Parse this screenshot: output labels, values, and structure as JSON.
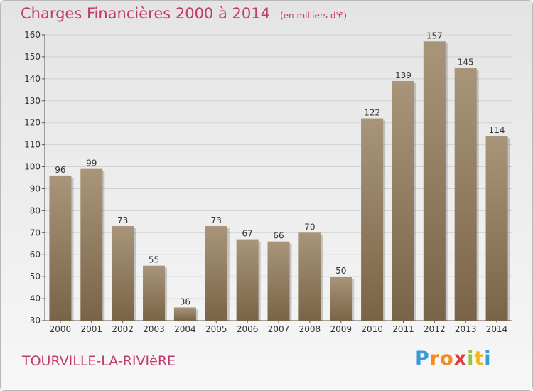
{
  "title": "Charges Financières 2000 à 2014",
  "unit_note": "(en milliers d'€)",
  "city": "TOURVILLE-LA-RIVIèRE",
  "logo": {
    "letters": [
      "P",
      "r",
      "o",
      "x",
      "i",
      "t",
      "i"
    ],
    "colors": [
      "#3a9ad9",
      "#f28c1e",
      "#f28c1e",
      "#e23b3b",
      "#8dc63f",
      "#f2b51e",
      "#3a9ad9"
    ]
  },
  "colors": {
    "title": "#c03a6e",
    "bar_top": "#a8957a",
    "bar_bottom": "#7a6447",
    "grid": "#d2d2d2"
  },
  "chart_data": {
    "type": "bar",
    "title": "Charges Financières 2000 à 2014",
    "categories": [
      "2000",
      "2001",
      "2002",
      "2003",
      "2004",
      "2005",
      "2006",
      "2007",
      "2008",
      "2009",
      "2010",
      "2011",
      "2012",
      "2013",
      "2014"
    ],
    "values": [
      96,
      99,
      73,
      55,
      36,
      73,
      67,
      66,
      70,
      50,
      122,
      139,
      157,
      145,
      114
    ],
    "xlabel": "",
    "ylabel": "",
    "ylim": [
      30,
      160
    ],
    "yticks": [
      30,
      40,
      50,
      60,
      70,
      80,
      90,
      100,
      110,
      120,
      130,
      140,
      150,
      160
    ],
    "grid": true,
    "legend": "none"
  }
}
